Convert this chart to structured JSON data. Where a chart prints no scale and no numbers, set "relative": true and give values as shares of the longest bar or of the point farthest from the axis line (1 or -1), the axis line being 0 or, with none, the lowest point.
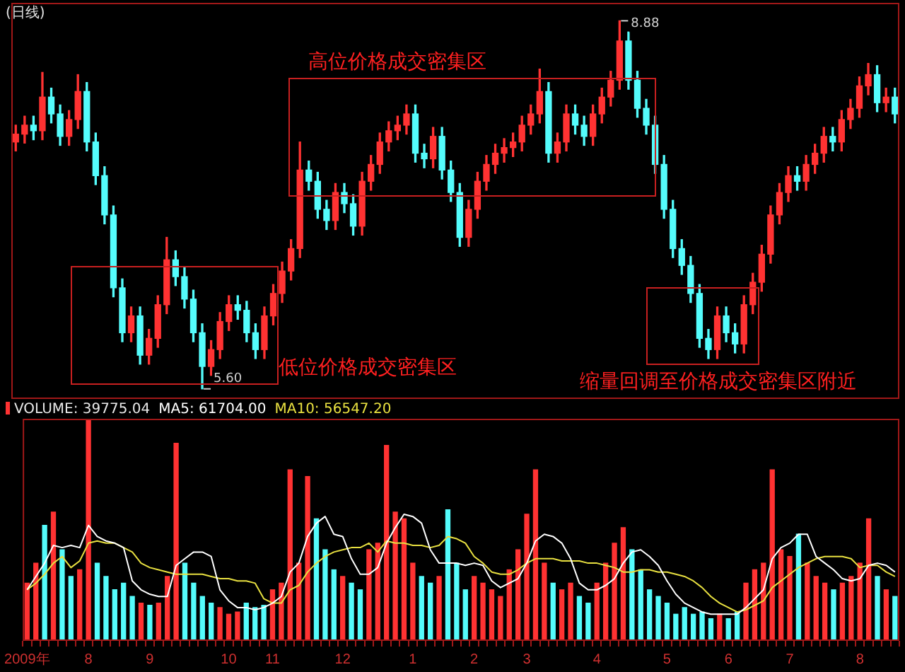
{
  "chart_data": [
    {
      "type": "candlestick",
      "title": "(日线)",
      "categories": [
        null,
        null,
        null,
        null,
        null,
        null,
        null,
        null,
        null,
        null,
        null,
        null,
        null,
        null,
        null,
        null,
        null,
        null,
        null,
        null,
        null,
        null,
        null,
        null,
        null,
        null,
        null,
        null,
        null,
        null,
        null,
        null,
        null,
        null,
        null,
        null,
        null,
        null,
        null,
        null,
        null,
        null,
        null,
        null,
        null,
        null,
        null,
        null,
        null,
        null,
        null,
        null,
        null,
        null,
        null,
        null,
        null,
        null,
        null,
        null,
        null,
        null,
        null,
        null,
        null,
        null,
        null,
        null,
        null,
        null,
        null,
        null,
        null,
        null,
        null,
        null,
        null,
        null,
        null,
        null,
        null,
        null,
        null,
        null,
        null,
        null,
        null,
        null,
        null,
        null,
        null,
        null,
        null,
        null,
        null,
        null,
        null,
        null,
        null,
        null
      ],
      "ohlc": [
        [
          7.8,
          7.95,
          7.72,
          7.87
        ],
        [
          7.87,
          8.03,
          7.79,
          7.95
        ],
        [
          7.95,
          8.03,
          7.82,
          7.9
        ],
        [
          7.9,
          8.42,
          7.82,
          8.2
        ],
        [
          8.2,
          8.28,
          7.97,
          8.05
        ],
        [
          8.05,
          8.13,
          7.77,
          7.85
        ],
        [
          7.85,
          8.08,
          7.77,
          8.0
        ],
        [
          8.0,
          8.4,
          7.92,
          8.25
        ],
        [
          8.25,
          8.33,
          7.72,
          7.8
        ],
        [
          7.8,
          7.88,
          7.42,
          7.5
        ],
        [
          7.5,
          7.58,
          7.07,
          7.15
        ],
        [
          7.15,
          7.23,
          6.42,
          6.5
        ],
        [
          6.5,
          6.58,
          6.02,
          6.1
        ],
        [
          6.1,
          6.33,
          6.02,
          6.25
        ],
        [
          6.25,
          6.33,
          5.82,
          5.9
        ],
        [
          5.9,
          6.13,
          5.82,
          6.05
        ],
        [
          6.05,
          6.43,
          5.97,
          6.35
        ],
        [
          6.35,
          6.95,
          6.27,
          6.75
        ],
        [
          6.75,
          6.83,
          6.52,
          6.6
        ],
        [
          6.6,
          6.68,
          6.32,
          6.4
        ],
        [
          6.4,
          6.48,
          6.02,
          6.1
        ],
        [
          6.1,
          6.18,
          5.6,
          5.8
        ],
        [
          5.8,
          6.03,
          5.72,
          5.95
        ],
        [
          5.95,
          6.28,
          5.87,
          6.2
        ],
        [
          6.2,
          6.43,
          6.12,
          6.35
        ],
        [
          6.35,
          6.43,
          6.22,
          6.3
        ],
        [
          6.3,
          6.38,
          6.02,
          6.1
        ],
        [
          6.1,
          6.18,
          5.87,
          5.95
        ],
        [
          5.95,
          6.33,
          5.87,
          6.25
        ],
        [
          6.25,
          6.53,
          6.17,
          6.45
        ],
        [
          6.45,
          6.73,
          6.37,
          6.65
        ],
        [
          6.65,
          6.93,
          6.57,
          6.85
        ],
        [
          6.85,
          7.8,
          6.77,
          7.55
        ],
        [
          7.55,
          7.63,
          7.37,
          7.45
        ],
        [
          7.45,
          7.53,
          7.12,
          7.2
        ],
        [
          7.2,
          7.28,
          7.02,
          7.1
        ],
        [
          7.1,
          7.43,
          7.02,
          7.35
        ],
        [
          7.35,
          7.43,
          7.17,
          7.25
        ],
        [
          7.25,
          7.33,
          6.97,
          7.05
        ],
        [
          7.05,
          7.53,
          6.97,
          7.45
        ],
        [
          7.45,
          7.68,
          7.37,
          7.6
        ],
        [
          7.6,
          7.88,
          7.52,
          7.8
        ],
        [
          7.8,
          7.98,
          7.72,
          7.9
        ],
        [
          7.9,
          8.03,
          7.82,
          7.95
        ],
        [
          7.95,
          8.13,
          7.87,
          8.05
        ],
        [
          8.05,
          8.13,
          7.62,
          7.7
        ],
        [
          7.7,
          7.78,
          7.57,
          7.65
        ],
        [
          7.65,
          7.93,
          7.57,
          7.85
        ],
        [
          7.85,
          7.93,
          7.47,
          7.55
        ],
        [
          7.55,
          7.63,
          7.27,
          7.35
        ],
        [
          7.35,
          7.43,
          6.87,
          6.95
        ],
        [
          6.95,
          7.28,
          6.87,
          7.2
        ],
        [
          7.2,
          7.53,
          7.12,
          7.45
        ],
        [
          7.45,
          7.68,
          7.37,
          7.6
        ],
        [
          7.6,
          7.78,
          7.52,
          7.7
        ],
        [
          7.7,
          7.83,
          7.62,
          7.75
        ],
        [
          7.75,
          7.88,
          7.67,
          7.8
        ],
        [
          7.8,
          8.03,
          7.72,
          7.95
        ],
        [
          7.95,
          8.13,
          7.87,
          8.05
        ],
        [
          8.05,
          8.45,
          7.97,
          8.25
        ],
        [
          8.25,
          8.33,
          7.62,
          7.7
        ],
        [
          7.7,
          7.88,
          7.62,
          7.8
        ],
        [
          7.8,
          8.13,
          7.72,
          8.05
        ],
        [
          8.05,
          8.13,
          7.87,
          7.95
        ],
        [
          7.95,
          8.03,
          7.77,
          7.85
        ],
        [
          7.85,
          8.13,
          7.77,
          8.05
        ],
        [
          8.05,
          8.28,
          7.97,
          8.2
        ],
        [
          8.2,
          8.43,
          8.12,
          8.35
        ],
        [
          8.35,
          8.88,
          8.27,
          8.7
        ],
        [
          8.7,
          8.78,
          8.27,
          8.35
        ],
        [
          8.35,
          8.43,
          8.02,
          8.1
        ],
        [
          8.1,
          8.18,
          7.87,
          7.95
        ],
        [
          7.95,
          8.03,
          7.52,
          7.6
        ],
        [
          7.6,
          7.68,
          7.12,
          7.2
        ],
        [
          7.2,
          7.28,
          6.77,
          6.85
        ],
        [
          6.85,
          6.93,
          6.62,
          6.7
        ],
        [
          6.7,
          6.78,
          6.37,
          6.45
        ],
        [
          6.45,
          6.53,
          5.97,
          6.05
        ],
        [
          6.05,
          6.13,
          5.87,
          5.95
        ],
        [
          5.95,
          6.33,
          5.87,
          6.25
        ],
        [
          6.25,
          6.33,
          6.02,
          6.1
        ],
        [
          6.1,
          6.18,
          5.92,
          6.0
        ],
        [
          6.0,
          6.43,
          5.92,
          6.35
        ],
        [
          6.35,
          6.63,
          6.27,
          6.55
        ],
        [
          6.55,
          6.88,
          6.47,
          6.8
        ],
        [
          6.8,
          7.23,
          6.72,
          7.15
        ],
        [
          7.15,
          7.43,
          7.07,
          7.35
        ],
        [
          7.35,
          7.58,
          7.27,
          7.5
        ],
        [
          7.5,
          7.58,
          7.37,
          7.45
        ],
        [
          7.45,
          7.68,
          7.37,
          7.6
        ],
        [
          7.6,
          7.78,
          7.52,
          7.7
        ],
        [
          7.7,
          7.93,
          7.62,
          7.85
        ],
        [
          7.85,
          7.93,
          7.72,
          7.8
        ],
        [
          7.8,
          8.08,
          7.72,
          8.0
        ],
        [
          8.0,
          8.18,
          7.92,
          8.1
        ],
        [
          8.1,
          8.38,
          8.02,
          8.3
        ],
        [
          8.3,
          8.5,
          8.22,
          8.4
        ],
        [
          8.4,
          8.48,
          8.07,
          8.15
        ],
        [
          8.15,
          8.28,
          8.07,
          8.2
        ],
        [
          8.2,
          8.28,
          7.97,
          8.05
        ]
      ],
      "colors": [
        "#ff3232",
        "#ff3232",
        "#54fcfc",
        "#ff3232",
        "#54fcfc",
        "#54fcfc",
        "#ff3232",
        "#ff3232",
        "#54fcfc",
        "#54fcfc",
        "#54fcfc",
        "#54fcfc",
        "#54fcfc",
        "#ff3232",
        "#54fcfc",
        "#ff3232",
        "#ff3232",
        "#ff3232",
        "#54fcfc",
        "#54fcfc",
        "#54fcfc",
        "#54fcfc",
        "#ff3232",
        "#ff3232",
        "#ff3232",
        "#54fcfc",
        "#54fcfc",
        "#54fcfc",
        "#ff3232",
        "#ff3232",
        "#ff3232",
        "#ff3232",
        "#ff3232",
        "#54fcfc",
        "#54fcfc",
        "#54fcfc",
        "#ff3232",
        "#54fcfc",
        "#54fcfc",
        "#ff3232",
        "#ff3232",
        "#ff3232",
        "#ff3232",
        "#ff3232",
        "#ff3232",
        "#54fcfc",
        "#54fcfc",
        "#ff3232",
        "#54fcfc",
        "#54fcfc",
        "#54fcfc",
        "#ff3232",
        "#ff3232",
        "#ff3232",
        "#ff3232",
        "#ff3232",
        "#ff3232",
        "#ff3232",
        "#ff3232",
        "#ff3232",
        "#54fcfc",
        "#ff3232",
        "#ff3232",
        "#54fcfc",
        "#54fcfc",
        "#ff3232",
        "#ff3232",
        "#ff3232",
        "#ff3232",
        "#54fcfc",
        "#54fcfc",
        "#54fcfc",
        "#54fcfc",
        "#54fcfc",
        "#54fcfc",
        "#54fcfc",
        "#54fcfc",
        "#54fcfc",
        "#54fcfc",
        "#ff3232",
        "#54fcfc",
        "#54fcfc",
        "#ff3232",
        "#ff3232",
        "#ff3232",
        "#ff3232",
        "#ff3232",
        "#ff3232",
        "#54fcfc",
        "#ff3232",
        "#ff3232",
        "#ff3232",
        "#54fcfc",
        "#ff3232",
        "#ff3232",
        "#ff3232",
        "#ff3232",
        "#54fcfc",
        "#ff3232",
        "#54fcfc"
      ],
      "ylim": [
        5.51,
        9.04
      ],
      "tick_labels": false,
      "annotations": [
        "高位价格成交密集区",
        "低位价格成交密集区",
        "缩量回调至价格成交密集区附近",
        "8.88",
        "5.60"
      ]
    },
    {
      "type": "bar",
      "categories": [
        "2009年",
        null,
        null,
        null,
        null,
        null,
        null,
        "8",
        null,
        null,
        null,
        null,
        null,
        null,
        "9",
        null,
        null,
        null,
        null,
        null,
        null,
        null,
        null,
        "10",
        null,
        null,
        null,
        null,
        "11",
        null,
        null,
        null,
        null,
        null,
        null,
        null,
        "12",
        null,
        null,
        null,
        null,
        null,
        null,
        null,
        "1",
        null,
        null,
        null,
        null,
        null,
        null,
        "2",
        null,
        null,
        null,
        null,
        null,
        "3",
        null,
        null,
        null,
        null,
        null,
        null,
        null,
        "4",
        null,
        null,
        null,
        null,
        null,
        null,
        null,
        "5",
        null,
        null,
        null,
        null,
        null,
        null,
        "6",
        null,
        null,
        null,
        null,
        null,
        null,
        "7",
        null,
        null,
        null,
        null,
        null,
        null,
        null,
        "8",
        null,
        null,
        null,
        null
      ],
      "relative": true,
      "tick_labels": "x",
      "legend": "top left",
      "series": [
        {
          "name": "VOLUME: 39775.04",
          "type": "bar",
          "colors": [
            "#ff3232",
            "#ff3232",
            "#54fcfc",
            "#ff3232",
            "#54fcfc",
            "#54fcfc",
            "#ff3232",
            "#ff3232",
            "#54fcfc",
            "#54fcfc",
            "#54fcfc",
            "#54fcfc",
            "#54fcfc",
            "#ff3232",
            "#54fcfc",
            "#ff3232",
            "#ff3232",
            "#ff3232",
            "#54fcfc",
            "#54fcfc",
            "#54fcfc",
            "#54fcfc",
            "#ff3232",
            "#ff3232",
            "#ff3232",
            "#54fcfc",
            "#54fcfc",
            "#54fcfc",
            "#ff3232",
            "#ff3232",
            "#ff3232",
            "#ff3232",
            "#ff3232",
            "#54fcfc",
            "#54fcfc",
            "#54fcfc",
            "#ff3232",
            "#54fcfc",
            "#54fcfc",
            "#ff3232",
            "#ff3232",
            "#ff3232",
            "#ff3232",
            "#ff3232",
            "#ff3232",
            "#54fcfc",
            "#54fcfc",
            "#ff3232",
            "#54fcfc",
            "#54fcfc",
            "#54fcfc",
            "#ff3232",
            "#ff3232",
            "#ff3232",
            "#ff3232",
            "#ff3232",
            "#ff3232",
            "#ff3232",
            "#ff3232",
            "#ff3232",
            "#54fcfc",
            "#ff3232",
            "#ff3232",
            "#54fcfc",
            "#54fcfc",
            "#ff3232",
            "#ff3232",
            "#ff3232",
            "#ff3232",
            "#54fcfc",
            "#54fcfc",
            "#54fcfc",
            "#54fcfc",
            "#54fcfc",
            "#54fcfc",
            "#54fcfc",
            "#54fcfc",
            "#54fcfc",
            "#54fcfc",
            "#ff3232",
            "#54fcfc",
            "#54fcfc",
            "#ff3232",
            "#ff3232",
            "#ff3232",
            "#ff3232",
            "#ff3232",
            "#ff3232",
            "#54fcfc",
            "#ff3232",
            "#ff3232",
            "#ff3232",
            "#54fcfc",
            "#ff3232",
            "#ff3232",
            "#ff3232",
            "#ff3232",
            "#54fcfc",
            "#ff3232",
            "#54fcfc"
          ],
          "values": [
            0.26,
            0.35,
            0.52,
            0.58,
            0.41,
            0.29,
            0.32,
            1,
            0.35,
            0.29,
            0.23,
            0.26,
            0.2,
            0.17,
            0.16,
            0.17,
            0.29,
            0.89,
            0.35,
            0.26,
            0.2,
            0.17,
            0.15,
            0.12,
            0.13,
            0.17,
            0.15,
            0.16,
            0.23,
            0.26,
            0.77,
            0.35,
            0.74,
            0.55,
            0.41,
            0.32,
            0.29,
            0.26,
            0.23,
            0.41,
            0.44,
            0.88,
            0.58,
            0.55,
            0.35,
            0.29,
            0.26,
            0.29,
            0.59,
            0.35,
            0.23,
            0.29,
            0.26,
            0.23,
            0.2,
            0.32,
            0.41,
            0.57,
            0.77,
            0.35,
            0.26,
            0.23,
            0.26,
            0.2,
            0.17,
            0.26,
            0.35,
            0.44,
            0.51,
            0.41,
            0.32,
            0.23,
            0.2,
            0.17,
            0.12,
            0.15,
            0.12,
            0.13,
            0.1,
            0.12,
            0.1,
            0.13,
            0.26,
            0.32,
            0.35,
            0.77,
            0.41,
            0.38,
            0.48,
            0.35,
            0.29,
            0.26,
            0.23,
            0.26,
            0.29,
            0.35,
            0.55,
            0.29,
            0.23,
            0.2
          ]
        },
        {
          "name": "MA5: 61704.00",
          "type": "line",
          "color": "#ffffff",
          "values": [
            0.23,
            0.29,
            0.35,
            0.43,
            0.42,
            0.43,
            0.42,
            0.52,
            0.47,
            0.45,
            0.44,
            0.42,
            0.27,
            0.23,
            0.21,
            0.2,
            0.2,
            0.34,
            0.37,
            0.4,
            0.4,
            0.38,
            0.23,
            0.18,
            0.15,
            0.15,
            0.14,
            0.15,
            0.17,
            0.2,
            0.31,
            0.35,
            0.47,
            0.53,
            0.56,
            0.48,
            0.47,
            0.37,
            0.3,
            0.3,
            0.33,
            0.44,
            0.51,
            0.57,
            0.56,
            0.53,
            0.41,
            0.35,
            0.35,
            0.35,
            0.34,
            0.35,
            0.34,
            0.27,
            0.24,
            0.26,
            0.28,
            0.35,
            0.45,
            0.48,
            0.47,
            0.44,
            0.37,
            0.26,
            0.23,
            0.23,
            0.25,
            0.28,
            0.35,
            0.4,
            0.41,
            0.38,
            0.34,
            0.27,
            0.21,
            0.17,
            0.15,
            0.13,
            0.12,
            0.12,
            0.12,
            0.12,
            0.15,
            0.19,
            0.23,
            0.37,
            0.42,
            0.44,
            0.48,
            0.48,
            0.38,
            0.35,
            0.32,
            0.28,
            0.27,
            0.28,
            0.34,
            0.35,
            0.34,
            0.31
          ]
        },
        {
          "name": "MA10: 56547.20",
          "type": "line",
          "color": "#e8e040",
          "values": [
            0.23,
            0.26,
            0.3,
            0.35,
            0.38,
            0.33,
            0.36,
            0.44,
            0.45,
            0.44,
            0.44,
            0.42,
            0.4,
            0.35,
            0.33,
            0.32,
            0.31,
            0.3,
            0.3,
            0.3,
            0.3,
            0.29,
            0.28,
            0.28,
            0.27,
            0.27,
            0.26,
            0.19,
            0.17,
            0.17,
            0.23,
            0.25,
            0.31,
            0.35,
            0.38,
            0.4,
            0.41,
            0.42,
            0.42,
            0.44,
            0.4,
            0.45,
            0.44,
            0.44,
            0.43,
            0.43,
            0.42,
            0.43,
            0.47,
            0.46,
            0.44,
            0.38,
            0.35,
            0.31,
            0.3,
            0.3,
            0.32,
            0.35,
            0.37,
            0.37,
            0.37,
            0.36,
            0.36,
            0.36,
            0.35,
            0.35,
            0.34,
            0.33,
            0.31,
            0.31,
            0.32,
            0.32,
            0.31,
            0.31,
            0.3,
            0.29,
            0.27,
            0.24,
            0.2,
            0.17,
            0.15,
            0.13,
            0.14,
            0.16,
            0.18,
            0.24,
            0.27,
            0.3,
            0.33,
            0.35,
            0.37,
            0.38,
            0.38,
            0.38,
            0.37,
            0.33,
            0.34,
            0.34,
            0.31,
            0.29
          ]
        }
      ]
    }
  ]
}
